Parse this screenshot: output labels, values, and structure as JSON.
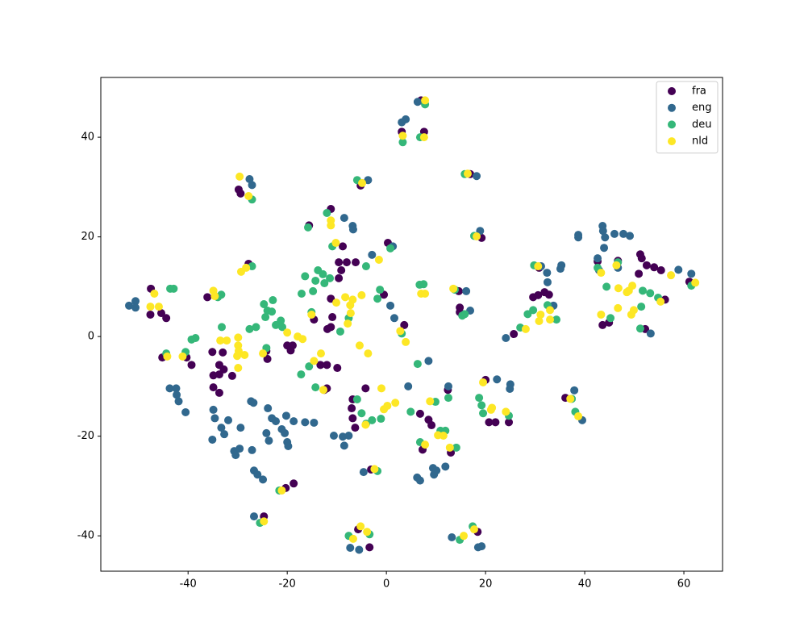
{
  "chart_data": {
    "type": "scatter",
    "legend": "upper right",
    "grid": false,
    "xlim": [
      -57.6,
      67.8
    ],
    "ylim": [
      -47.1,
      52
    ],
    "xticks": [
      -40,
      -20,
      0,
      20,
      40,
      60
    ],
    "yticks": [
      -40,
      -20,
      0,
      20,
      40
    ],
    "series": [
      {
        "name": "fra",
        "color": "#440154",
        "x": [
          7,
          3.1,
          7.6,
          -29.8,
          -29.4,
          -5.2,
          16.9,
          19.2,
          -11.2,
          -15.6,
          -8.8,
          0.3,
          -27.8,
          -47.5,
          -47.6,
          -45.4,
          -44.4,
          -36.1,
          -9.6,
          -8,
          -6.2,
          -9.6,
          -9.1,
          -11.2,
          -10.9,
          -11.2,
          -11.9,
          -14.6,
          3.6,
          -0.5,
          -45.2,
          -40.3,
          -39.3,
          -35.1,
          -33,
          -33.7,
          -32.8,
          -34.9,
          -33.7,
          -31.1,
          -34.9,
          -33.7,
          -24.2,
          -24,
          -20,
          -19.3,
          -18.9,
          -13.3,
          -12,
          -9.9,
          -12.5,
          -12,
          -6.8,
          -4.2,
          -7,
          -6.8,
          -6.3,
          -3.4,
          -5.7,
          -3.1,
          6.8,
          8.5,
          9.1,
          7.3,
          13,
          12.4,
          20,
          20.7,
          22,
          24.7,
          18.4,
          -18.7,
          -20.3,
          -24.7,
          14.6,
          14.8,
          14.8,
          25.7,
          29.6,
          30.6,
          31.9,
          32.8,
          30.8,
          36.1,
          42.6,
          46.7,
          43.6,
          44.9,
          51.2,
          51.5,
          52.5,
          54,
          55.4,
          50.9,
          56.2,
          52.2,
          61.1
        ],
        "y": [
          47.4,
          41.1,
          41.1,
          29.5,
          28.7,
          30.3,
          32.6,
          19.8,
          25.6,
          22.3,
          18.1,
          18.8,
          14.6,
          9.6,
          4.4,
          4.7,
          3.7,
          7.9,
          14.9,
          14.9,
          14.9,
          11.7,
          13.3,
          7.6,
          3.9,
          1.9,
          1.5,
          3.4,
          2.3,
          8.4,
          -4.2,
          -4.2,
          -5.7,
          -3.1,
          -3.2,
          -5.7,
          -6.6,
          -7.8,
          -7.6,
          -7.9,
          -10.2,
          -11.3,
          -2.9,
          -4.5,
          -1.8,
          -2.8,
          -1.8,
          -5.7,
          -5.7,
          -6.3,
          -10.7,
          -10.4,
          -12.6,
          -10.4,
          -14.4,
          -16.4,
          -18.3,
          -42.3,
          -38.7,
          -26.7,
          -15.5,
          -16.7,
          -17.8,
          -22.7,
          -23.3,
          -10.7,
          -8.7,
          -17.2,
          -17.2,
          -17.2,
          -39.2,
          -29.5,
          -30.4,
          -36.1,
          9.1,
          5.8,
          4.9,
          0.5,
          7.9,
          8.3,
          8.9,
          8.4,
          13.8,
          -12.3,
          15.1,
          15.2,
          2.3,
          2.8,
          16.5,
          15.7,
          14.3,
          13.9,
          13.3,
          12.6,
          7.4,
          1.5,
          11
        ]
      },
      {
        "name": "eng",
        "color": "#31688e",
        "x": [
          -50.6,
          -51.9,
          -50.6,
          3.9,
          3.1,
          6.3,
          -27.6,
          -27.1,
          -3.7,
          18.2,
          18.9,
          -8.5,
          -6.8,
          -6.7,
          1.3,
          -2.9,
          16.1,
          16.9,
          0.8,
          1.6,
          8.5,
          -43.7,
          -42.4,
          -42.3,
          -41.9,
          -40.5,
          -34.9,
          -34.6,
          -35.1,
          -31.9,
          -33.3,
          -32.7,
          -30.7,
          -30.4,
          -29.6,
          -29.4,
          -27.3,
          -26.8,
          -23.9,
          -23.1,
          -22.3,
          -21.1,
          -20.5,
          -20.2,
          -18.7,
          -24.2,
          -23.7,
          -20,
          -19.8,
          -16.4,
          -14.6,
          -27.1,
          -26.7,
          -26,
          -24.9,
          -26.7,
          -10.6,
          -8.8,
          -7.6,
          -8.5,
          -7.3,
          -5.5,
          -4.6,
          6.2,
          6.8,
          9.4,
          10.1,
          9.6,
          11.9,
          4.4,
          12.5,
          22.3,
          25,
          24.9,
          18.5,
          19.2,
          13.2,
          24.1,
          32.4,
          31.2,
          32.5,
          35.3,
          35.1,
          37.9,
          39.5,
          38.7,
          38.7,
          42.6,
          43.6,
          43.7,
          44.1,
          43.9,
          46,
          47.8,
          49.1,
          42.9,
          46.7,
          58.9,
          61.5,
          53.3,
          33.7
        ],
        "y": [
          7.1,
          6.2,
          5.8,
          43.6,
          43,
          47.1,
          31.6,
          30.4,
          31.4,
          32.2,
          21.2,
          23.8,
          22.2,
          21.5,
          18.1,
          16.4,
          9.1,
          5.2,
          6.2,
          3.7,
          -4.9,
          -10.4,
          -10.4,
          -11.7,
          -13,
          -15.2,
          -14.7,
          -16.4,
          -20.7,
          -16.8,
          -18.3,
          -19.6,
          -23,
          -23.8,
          -22.5,
          -18.3,
          -13,
          -13.3,
          -14.4,
          -16.4,
          -17,
          -18.6,
          -19.4,
          -15.9,
          -17,
          -19.4,
          -20.9,
          -21.2,
          -22,
          -17.2,
          -17.3,
          -22.8,
          -26.9,
          -27.7,
          -28.7,
          -36.1,
          -19.9,
          -20.1,
          -19.9,
          -21.9,
          -42.4,
          -42.8,
          -27.2,
          -28.3,
          -28.9,
          -26.4,
          -26.9,
          -27.7,
          -26.1,
          -10,
          -10,
          -8.6,
          -9.6,
          -10.5,
          -42.3,
          -42.1,
          -40.3,
          -0.3,
          12.8,
          14.1,
          10.9,
          14.3,
          13.6,
          -10.8,
          -16.8,
          20.4,
          19.9,
          15.7,
          22.2,
          21.2,
          19.9,
          17.8,
          20.6,
          20.6,
          20.2,
          13.3,
          13.8,
          13.4,
          12.6,
          0.6,
          6.2
        ]
      },
      {
        "name": "deu",
        "color": "#35b779",
        "x": [
          7.8,
          3.3,
          6.8,
          -27.1,
          -5.9,
          15.8,
          17.7,
          -15.8,
          -12,
          -10.9,
          -4.1,
          0.8,
          -27.1,
          -43.6,
          -42.9,
          -34,
          -33.3,
          -33.2,
          -39.3,
          -38.5,
          -44.4,
          -40.5,
          -24.7,
          -22.9,
          -24,
          -23.1,
          -24.4,
          -21.3,
          -22.3,
          -21,
          -27.6,
          -26.3,
          -24.2,
          -17.1,
          -16.4,
          -14.3,
          -13.8,
          -12.8,
          -12.5,
          -11.4,
          -14.8,
          -15.1,
          -15.6,
          -17.2,
          -14.3,
          -9.3,
          -7.6,
          -1.3,
          -1.8,
          6.7,
          7.5,
          3.1,
          6.3,
          -5.9,
          -5,
          -4.1,
          -2.9,
          -1.1,
          4.9,
          9.9,
          12.5,
          10.9,
          11.9,
          6.8,
          14.1,
          -7.6,
          -3.4,
          -1.8,
          -25.5,
          -21.6,
          14.8,
          17.4,
          18.7,
          19.2,
          19.5,
          24.7,
          15.3,
          15.8,
          13.8,
          27,
          29.6,
          29.8,
          32.5,
          34.3,
          28.5,
          37.4,
          38.1,
          42.6,
          44.4,
          45.2,
          46.7,
          51.2,
          51.4,
          51.7,
          53.2,
          54.8,
          61.5
        ],
        "y": [
          46.6,
          39,
          40,
          27.5,
          31.4,
          32.6,
          20.2,
          21.9,
          24.8,
          18.1,
          14.1,
          17.7,
          14.1,
          9.6,
          9.6,
          7.9,
          8.4,
          1.9,
          -0.6,
          -0.3,
          -3.4,
          -3.1,
          6.5,
          7.3,
          5.2,
          5,
          3.9,
          3.2,
          2.3,
          1.9,
          1.5,
          1.9,
          -2.3,
          8.6,
          12.1,
          11.2,
          13.3,
          12.5,
          10.7,
          11.7,
          9.1,
          4.9,
          -6,
          -7.6,
          -10.2,
          1,
          3.7,
          9.4,
          7.6,
          10.4,
          10.5,
          0.6,
          -5.5,
          -12.6,
          -15.4,
          -17.5,
          -16.8,
          -16.5,
          -15.1,
          -13.1,
          -12.3,
          -18.9,
          -18.9,
          -21.2,
          -22.3,
          -40,
          -39.7,
          -27,
          -37.4,
          -30.9,
          -40.8,
          -38.1,
          -12.3,
          -13.8,
          -15.4,
          -15.9,
          4.2,
          4.5,
          9.4,
          1.8,
          5.3,
          14.3,
          6.3,
          3.4,
          4.5,
          -12.5,
          -15.1,
          13.8,
          10,
          3.7,
          14.9,
          1.6,
          6,
          9.2,
          8.7,
          7.8,
          10.2
        ]
      },
      {
        "name": "nld",
        "color": "#fde725",
        "x": [
          7.8,
          3.3,
          7.6,
          -29.6,
          -27.8,
          -4.9,
          16.4,
          18.2,
          -11.2,
          -11.2,
          -10.2,
          -29.3,
          -28.3,
          -46.8,
          -45.9,
          -47.6,
          -34.9,
          -34.6,
          -33.5,
          -32.2,
          -41.1,
          -44.2,
          -29.9,
          -29.9,
          -29.8,
          -30.1,
          -28.6,
          -29.9,
          -24.9,
          -20,
          -17.9,
          -16.9,
          -14.6,
          -13.2,
          -15.1,
          -10.1,
          -8.3,
          -6.8,
          -7.3,
          -7.8,
          -7.2,
          -5,
          -1.5,
          -5.4,
          -3.7,
          2.8,
          3.9,
          7,
          7.8,
          -12.7,
          -1,
          -0.5,
          0.2,
          1.8,
          -4.2,
          8.8,
          10.4,
          11.5,
          12.8,
          7.8,
          -5.2,
          -3.9,
          -6.7,
          -2.4,
          -24.7,
          -21.1,
          15.6,
          17.7,
          19.5,
          21.1,
          21.3,
          24.1,
          13.5,
          28.1,
          30.6,
          31.1,
          30.8,
          33,
          33,
          37.1,
          38.7,
          43.3,
          43.3,
          46.4,
          46.7,
          46.8,
          48.5,
          48.9,
          49.6,
          49.4,
          49.9,
          55.3,
          57.4,
          62.3
        ],
        "y": [
          47.4,
          40.3,
          40,
          32.1,
          28.2,
          30.8,
          32.7,
          20.1,
          23.3,
          22.3,
          18.8,
          13,
          13.8,
          8.6,
          6,
          6,
          9.2,
          8.1,
          -0.8,
          -0.8,
          -4,
          -4,
          -0.2,
          -1.8,
          -2.9,
          -3.9,
          -3.7,
          -6.3,
          -3.4,
          0.8,
          0,
          -0.5,
          -4.9,
          -3.4,
          4.4,
          6.8,
          7.9,
          7.4,
          6.3,
          2.6,
          4.7,
          8.3,
          15.4,
          -1.8,
          -3.4,
          1.1,
          -1.1,
          8.6,
          8.6,
          -10.7,
          -10.4,
          -14.6,
          -13.9,
          -13.3,
          -17.7,
          -13,
          -19.8,
          -19.9,
          -22.3,
          -21.7,
          -38.1,
          -39.2,
          -40.6,
          -26.6,
          -37.1,
          -30.9,
          -40,
          -38.7,
          -9.2,
          -14.7,
          -14.3,
          -15.1,
          9.6,
          1.5,
          14.1,
          4.4,
          3.1,
          5.3,
          3.4,
          -12.5,
          -16,
          12.8,
          4.4,
          14.3,
          5.7,
          9.7,
          8.9,
          9.2,
          10.2,
          4.4,
          5.3,
          7,
          12.3,
          10.8
        ]
      }
    ]
  }
}
